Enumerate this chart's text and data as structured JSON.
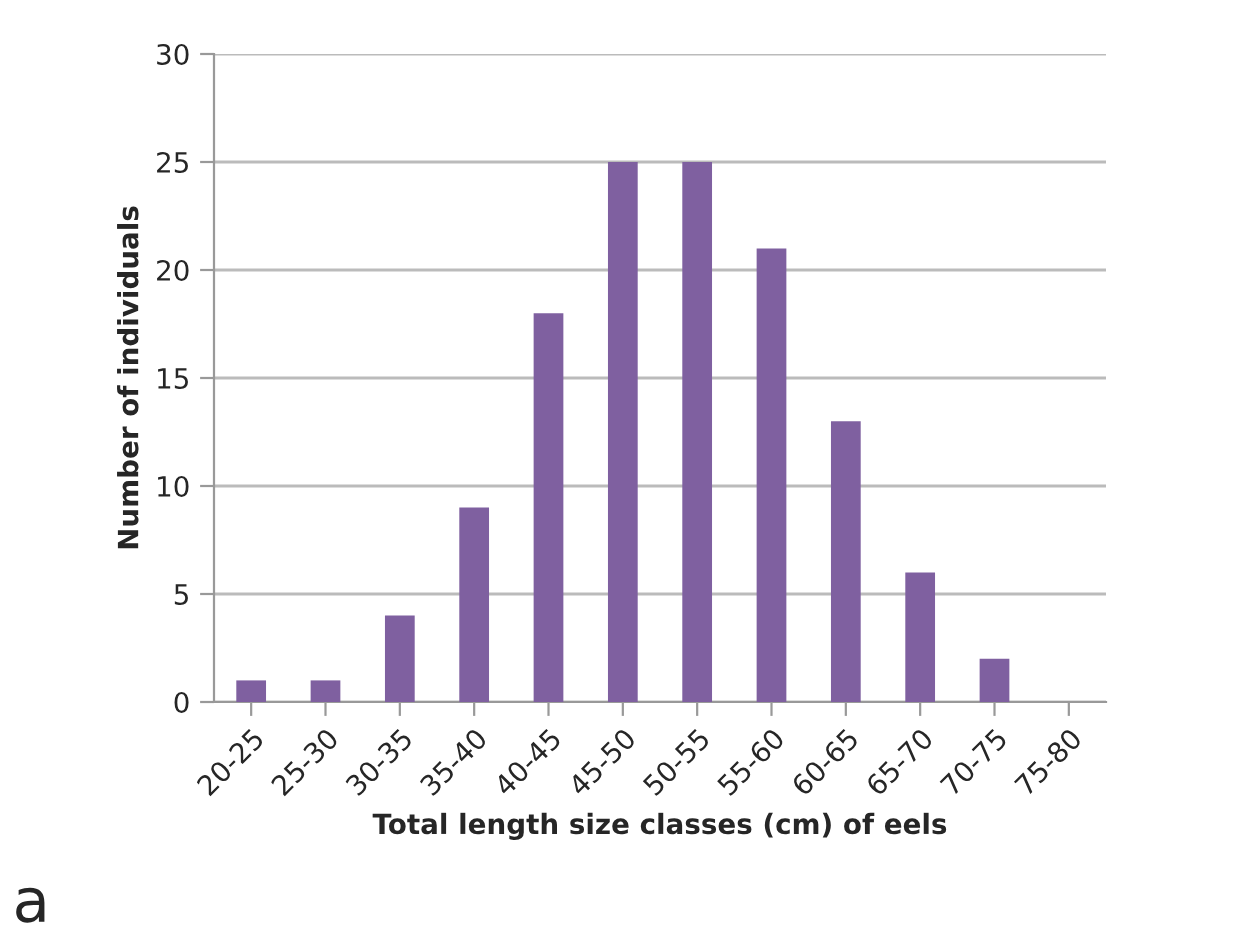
{
  "chart_data": {
    "type": "bar",
    "xlabel": "Total length size classes (cm) of eels",
    "ylabel": "Number of individuals",
    "categories": [
      "20-25",
      "25-30",
      "30-35",
      "35-40",
      "40-45",
      "45-50",
      "50-55",
      "55-60",
      "60-65",
      "65-70",
      "70-75",
      "75-80"
    ],
    "values": [
      1,
      1,
      4,
      9,
      18,
      25,
      25,
      21,
      13,
      6,
      2,
      0
    ],
    "color": "#7f60a0",
    "ylim": [
      0,
      30
    ],
    "yticks": [
      0,
      5,
      10,
      15,
      20,
      25,
      30
    ],
    "grid": "y",
    "legend": false,
    "annotations": [
      "a"
    ]
  }
}
